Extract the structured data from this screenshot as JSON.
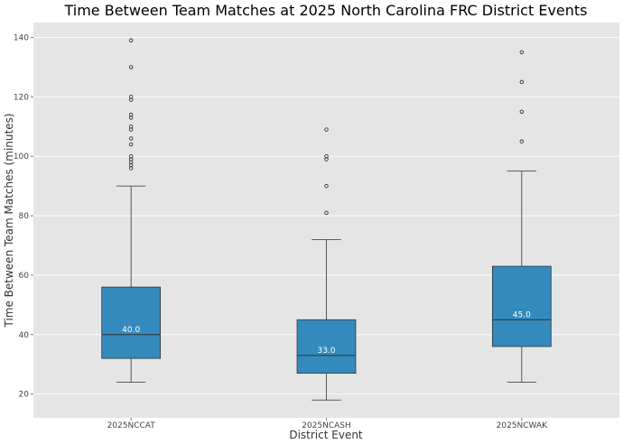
{
  "chart_data": {
    "type": "box",
    "title": "Time Between Team Matches at 2025 North Carolina FRC District Events",
    "xlabel": "District Event",
    "ylabel": "Time Between Team Matches (minutes)",
    "ylim": [
      12,
      145
    ],
    "yticks": [
      20,
      40,
      60,
      80,
      100,
      120,
      140
    ],
    "grid": true,
    "colors": {
      "box": "#348abd",
      "plot_bg": "#e5e5e5",
      "grid": "#ffffff",
      "line": "#333333"
    },
    "categories": [
      "2025NCCAT",
      "2025NCASH",
      "2025NCWAK"
    ],
    "boxes": [
      {
        "category": "2025NCCAT",
        "whisker_low": 24,
        "q1": 32,
        "median": 40,
        "q3": 56,
        "whisker_high": 90,
        "median_label": "40.0",
        "outliers": [
          96,
          97,
          98,
          99,
          100,
          104,
          106,
          109,
          110,
          113,
          114,
          119,
          120,
          130,
          139
        ]
      },
      {
        "category": "2025NCASH",
        "whisker_low": 18,
        "q1": 27,
        "median": 33,
        "q3": 45,
        "whisker_high": 72,
        "median_label": "33.0",
        "outliers": [
          81,
          90,
          99,
          100,
          109
        ]
      },
      {
        "category": "2025NCWAK",
        "whisker_low": 24,
        "q1": 36,
        "median": 45,
        "q3": 63,
        "whisker_high": 95,
        "median_label": "45.0",
        "outliers": [
          105,
          115,
          125,
          135
        ]
      }
    ]
  }
}
